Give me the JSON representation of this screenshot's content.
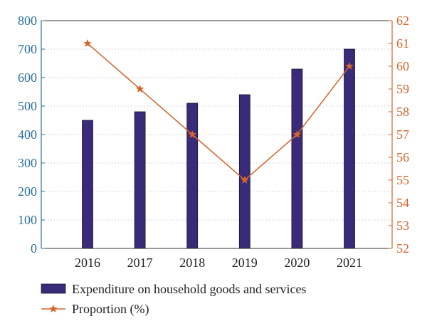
{
  "chart_data": {
    "type": "bar+line",
    "categories": [
      "2016",
      "2017",
      "2018",
      "2019",
      "2020",
      "2021"
    ],
    "series": [
      {
        "name": "Expenditure on household goods and services",
        "type": "bar",
        "axis": "left",
        "values": [
          450,
          480,
          510,
          540,
          630,
          700
        ]
      },
      {
        "name": "Proportion (%)",
        "type": "line",
        "marker": "star",
        "axis": "right",
        "values": [
          61,
          59,
          57,
          55,
          57,
          60
        ]
      }
    ],
    "y_left": {
      "min": 0,
      "max": 800,
      "ticks": [
        "0",
        "100",
        "200",
        "300",
        "400",
        "500",
        "600",
        "700",
        "800"
      ]
    },
    "y_right": {
      "min": 52,
      "max": 62,
      "ticks": [
        "52",
        "53",
        "54",
        "55",
        "56",
        "57",
        "58",
        "59",
        "60",
        "61",
        "62"
      ]
    },
    "grid": "dotted-horizontal",
    "legend_position": "bottom-left"
  },
  "colors": {
    "bar": "#3a2a7a",
    "line": "#d4652a",
    "left_axis": "#2a6f9e",
    "right_axis": "#d4652a",
    "grid": "#c8c8c8",
    "frame": "#333333"
  }
}
